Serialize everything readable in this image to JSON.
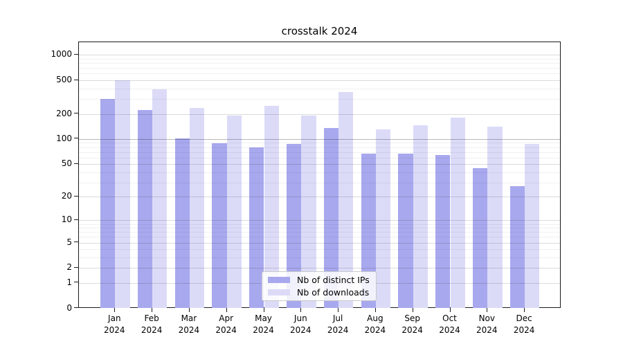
{
  "title": "crosstalk 2024",
  "chart_data": {
    "type": "bar",
    "title": "crosstalk 2024",
    "yscale": "log1p",
    "grid": "horizontal-major-and-minor",
    "legend_position": "bottom-center-inside",
    "year": "2024",
    "months": [
      "Jan",
      "Feb",
      "Mar",
      "Apr",
      "May",
      "Jun",
      "Jul",
      "Aug",
      "Sep",
      "Oct",
      "Nov",
      "Dec"
    ],
    "categories": [
      "Jan 2024",
      "Feb 2024",
      "Mar 2024",
      "Apr 2024",
      "May 2024",
      "Jun 2024",
      "Jul 2024",
      "Aug 2024",
      "Sep 2024",
      "Oct 2024",
      "Nov 2024",
      "Dec 2024"
    ],
    "series": [
      {
        "name": "Nb of distinct IPs",
        "color": "#a8a8ee",
        "values": [
          300,
          222,
          102,
          89,
          80,
          88,
          135,
          67,
          67,
          65,
          45,
          27
        ]
      },
      {
        "name": "Nb of downloads",
        "color": "#dbdbf8",
        "values": [
          505,
          393,
          235,
          192,
          248,
          189,
          365,
          131,
          146,
          181,
          141,
          88
        ]
      }
    ],
    "yticks": [
      0,
      1,
      2,
      5,
      10,
      20,
      50,
      100,
      200,
      500,
      1000
    ],
    "ytick_labels": [
      "0",
      "1",
      "2",
      "5",
      "10",
      "20",
      "50",
      "100",
      "200",
      "500",
      "1000"
    ],
    "ylim": [
      0,
      1420
    ],
    "xlabel": "",
    "ylabel": ""
  },
  "colors": {
    "distinct_ips": "#a8a8ee",
    "downloads": "#dbdbf8",
    "grid_major": "rgba(0,0,0,0.14)",
    "grid_major_100": "rgba(0,0,0,0.28)",
    "grid_minor": "rgba(0,0,0,0.06)",
    "spine": "#1a1a1a"
  }
}
